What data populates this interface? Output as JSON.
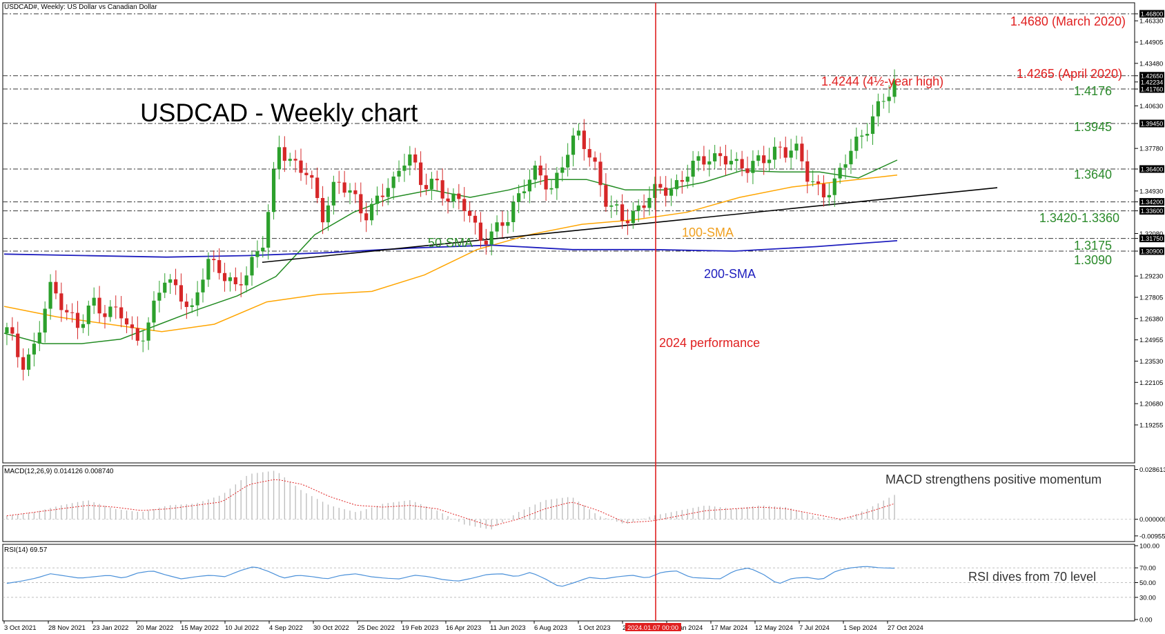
{
  "header": {
    "symbol_title": "USDCAD#, Weekly:  US Dollar vs Canadian Dollar",
    "chart_title": "USDCAD - Weekly chart"
  },
  "colors": {
    "bull": "#2ca02c",
    "bear": "#d62728",
    "sma50": "#228b22",
    "sma100": "#ffa500",
    "sma200": "#1e1ebe",
    "trendline": "#000000",
    "annotation_red": "#e02020",
    "annotation_green": "#2b8a2b",
    "macd_hist": "#bfbfbf",
    "macd_signal": "#e02020",
    "rsi": "#4a90d9",
    "vline": "#e02020"
  },
  "annotations": {
    "march2020": "1.4680 (March 2020)",
    "april2020": "1.4265 (April 2020)",
    "high": "1.4244 (4½-year high)",
    "l4176": "1.4176",
    "l3945": "1.3945",
    "l3640": "1.3640",
    "l3420": "1.3420-1.3360",
    "l3175": "1.3175",
    "l3090": "1.3090",
    "sma50": "50-SMA",
    "sma100": "100-SMA",
    "sma200": "200-SMA",
    "performance": "2024 performance",
    "macd_note": "MACD strengthens positive momentum",
    "rsi_note": "RSI dives from 70 level"
  },
  "macd_panel": {
    "label": "MACD(12,26,9) 0.014126 0.008740"
  },
  "rsi_panel": {
    "label": "RSI(14) 69.57"
  },
  "cursor_label": "2024.01.07 00:00",
  "chart_data": [
    {
      "type": "candlestick",
      "title": "USDCAD - Weekly chart",
      "ylim": [
        1.178,
        1.472
      ],
      "y_ticks": [
        "1.46800",
        "1.46330",
        "1.44905",
        "1.43480",
        "1.42650",
        "1.42234",
        "1.41760",
        "1.40630",
        "1.39450",
        "1.37780",
        "1.36400",
        "1.34930",
        "1.34200",
        "1.33600",
        "1.32080",
        "1.31750",
        "1.30900",
        "1.29230",
        "1.27805",
        "1.26380",
        "1.24955",
        "1.23530",
        "1.22105",
        "1.20680",
        "1.19255"
      ],
      "x_ticks": [
        "3 Oct 2021",
        "28 Nov 2021",
        "23 Jan 2022",
        "20 Mar 2022",
        "15 May 2022",
        "10 Jul 2022",
        "4 Sep 2022",
        "30 Oct 2022",
        "25 Dec 2022",
        "19 Feb 2023",
        "16 Apr 2023",
        "11 Jun 2023",
        "6 Aug 2023",
        "1 Oct 2023",
        "26 Nov 2023",
        "21 Jan 2024",
        "17 Mar 2024",
        "12 May 2024",
        "7 Jul 2024",
        "1 Sep 2024",
        "27 Oct 2024"
      ],
      "horizontal_levels": [
        1.468,
        1.4265,
        1.4176,
        1.3945,
        1.364,
        1.342,
        1.336,
        1.3175,
        1.309
      ],
      "vertical_marker_x": "2024.01.07 00:00",
      "weekly_close_anchors": [
        [
          "3 Oct 2021",
          1.255
        ],
        [
          "17 Oct 2021",
          1.235
        ],
        [
          "7 Nov 2021",
          1.245
        ],
        [
          "28 Nov 2021",
          1.283
        ],
        [
          "19 Dec 2021",
          1.275
        ],
        [
          "9 Jan 2022",
          1.255
        ],
        [
          "23 Jan 2022",
          1.275
        ],
        [
          "13 Feb 2022",
          1.27
        ],
        [
          "6 Mar 2022",
          1.265
        ],
        [
          "20 Mar 2022",
          1.25
        ],
        [
          "10 Apr 2022",
          1.262
        ],
        [
          "1 May 2022",
          1.29
        ],
        [
          "15 May 2022",
          1.285
        ],
        [
          "5 Jun 2022",
          1.265
        ],
        [
          "26 Jun 2022",
          1.305
        ],
        [
          "10 Jul 2022",
          1.297
        ],
        [
          "31 Jul 2022",
          1.28
        ],
        [
          "21 Aug 2022",
          1.302
        ],
        [
          "4 Sep 2022",
          1.318
        ],
        [
          "25 Sep 2022",
          1.378
        ],
        [
          "16 Oct 2022",
          1.37
        ],
        [
          "30 Oct 2022",
          1.36
        ],
        [
          "20 Nov 2022",
          1.332
        ],
        [
          "11 Dec 2022",
          1.358
        ],
        [
          "25 Dec 2022",
          1.345
        ],
        [
          "15 Jan 2023",
          1.335
        ],
        [
          "5 Feb 2023",
          1.345
        ],
        [
          "19 Feb 2023",
          1.353
        ],
        [
          "12 Mar 2023",
          1.38
        ],
        [
          "2 Apr 2023",
          1.35
        ],
        [
          "16 Apr 2023",
          1.355
        ],
        [
          "7 May 2023",
          1.345
        ],
        [
          "28 May 2023",
          1.337
        ],
        [
          "11 Jun 2023",
          1.32
        ],
        [
          "2 Jul 2023",
          1.32
        ],
        [
          "23 Jul 2023",
          1.33
        ],
        [
          "6 Aug 2023",
          1.355
        ],
        [
          "27 Aug 2023",
          1.36
        ],
        [
          "17 Sep 2023",
          1.35
        ],
        [
          "1 Oct 2023",
          1.375
        ],
        [
          "22 Oct 2023",
          1.385
        ],
        [
          "12 Nov 2023",
          1.37
        ],
        [
          "26 Nov 2023",
          1.338
        ],
        [
          "17 Dec 2023",
          1.33
        ],
        [
          "7 Jan 2024",
          1.338
        ],
        [
          "28 Jan 2024",
          1.345
        ],
        [
          "18 Feb 2024",
          1.352
        ],
        [
          "10 Mar 2024",
          1.355
        ],
        [
          "17 Mar 2024",
          1.365
        ],
        [
          "7 Apr 2024",
          1.375
        ],
        [
          "28 Apr 2024",
          1.37
        ],
        [
          "12 May 2024",
          1.365
        ],
        [
          "2 Jun 2024",
          1.37
        ],
        [
          "23 Jun 2024",
          1.368
        ],
        [
          "7 Jul 2024",
          1.378
        ],
        [
          "28 Jul 2024",
          1.38
        ],
        [
          "18 Aug 2024",
          1.355
        ],
        [
          "1 Sep 2024",
          1.35
        ],
        [
          "22 Sep 2024",
          1.355
        ],
        [
          "13 Oct 2024",
          1.378
        ],
        [
          "27 Oct 2024",
          1.393
        ],
        [
          "17 Nov 2024",
          1.404
        ],
        [
          "1 Dec 2024",
          1.4225
        ]
      ],
      "sma50_anchors": [
        [
          1.254
        ],
        [
          1.247
        ],
        [
          1.247
        ],
        [
          1.25
        ],
        [
          1.26
        ],
        [
          1.27
        ],
        [
          1.279
        ],
        [
          1.292
        ],
        [
          1.32
        ],
        [
          1.335
        ],
        [
          1.345
        ],
        [
          1.35
        ],
        [
          1.345
        ],
        [
          1.35
        ],
        [
          1.357
        ],
        [
          1.357
        ],
        [
          1.35
        ],
        [
          1.35
        ],
        [
          1.355
        ],
        [
          1.363
        ],
        [
          1.362
        ],
        [
          1.362
        ],
        [
          1.358
        ],
        [
          1.37
        ]
      ],
      "sma100_anchors": [
        [
          1.272
        ],
        [
          1.265
        ],
        [
          1.26
        ],
        [
          1.255
        ],
        [
          1.26
        ],
        [
          1.275
        ],
        [
          1.28
        ],
        [
          1.282
        ],
        [
          1.293
        ],
        [
          1.31
        ],
        [
          1.32
        ],
        [
          1.327
        ],
        [
          1.33
        ],
        [
          1.335
        ],
        [
          1.345
        ],
        [
          1.352
        ],
        [
          1.356
        ],
        [
          1.36
        ]
      ],
      "sma200_anchors": [
        [
          1.307
        ],
        [
          1.306
        ],
        [
          1.305
        ],
        [
          1.306
        ],
        [
          1.308
        ],
        [
          1.311
        ],
        [
          1.313
        ],
        [
          1.31
        ],
        [
          1.31
        ],
        [
          1.309
        ],
        [
          1.312
        ],
        [
          1.316
        ]
      ],
      "trendline": {
        "from": [
          "4 Sep 2022",
          1.3015
        ],
        "to": [
          "Jan 2025",
          1.3515
        ]
      }
    },
    {
      "type": "bar",
      "title": "MACD(12,26,9) 0.014126 0.008740",
      "ylim": [
        -0.012,
        0.03
      ],
      "y_ticks": [
        "0.028613",
        "0.000000",
        "-0.009552"
      ],
      "series": [
        {
          "name": "MACD",
          "values": [
            0.002,
            0.004,
            0.008,
            0.011,
            0.006,
            0.004,
            0.008,
            0.009,
            0.014,
            0.026,
            0.028,
            0.016,
            0.008,
            0.004,
            0.009,
            0.011,
            0.005,
            -0.003,
            -0.006,
            0.004,
            0.011,
            0.013,
            0.002,
            -0.003,
            0.002,
            0.005,
            0.008,
            0.006,
            0.008,
            0.007,
            0.002,
            -0.001,
            0.006,
            0.014
          ]
        },
        {
          "name": "Signal",
          "values": [
            0.002,
            0.004,
            0.006,
            0.008,
            0.007,
            0.005,
            0.006,
            0.008,
            0.01,
            0.02,
            0.023,
            0.02,
            0.013,
            0.008,
            0.007,
            0.008,
            0.006,
            0.001,
            -0.004,
            0.0,
            0.006,
            0.01,
            0.005,
            -0.002,
            -0.001,
            0.002,
            0.005,
            0.006,
            0.007,
            0.006,
            0.003,
            0.0,
            0.004,
            0.009
          ]
        }
      ]
    },
    {
      "type": "line",
      "title": "RSI(14) 69.57",
      "ylim": [
        0,
        100
      ],
      "y_ticks": [
        "100.00",
        "70.00",
        "50.00",
        "30.00",
        "0.00"
      ],
      "series": [
        {
          "name": "RSI",
          "values": [
            49,
            52,
            56,
            62,
            59,
            56,
            58,
            60,
            56,
            63,
            66,
            60,
            55,
            58,
            60,
            58,
            66,
            72,
            65,
            56,
            60,
            58,
            55,
            60,
            62,
            58,
            56,
            55,
            60,
            58,
            54,
            52,
            56,
            61,
            62,
            58,
            64,
            55,
            44,
            50,
            57,
            55,
            58,
            60,
            56,
            64,
            66,
            57,
            56,
            55,
            66,
            70,
            61,
            48,
            56,
            57,
            54,
            66,
            70,
            72,
            70,
            69.57
          ]
        }
      ]
    }
  ]
}
